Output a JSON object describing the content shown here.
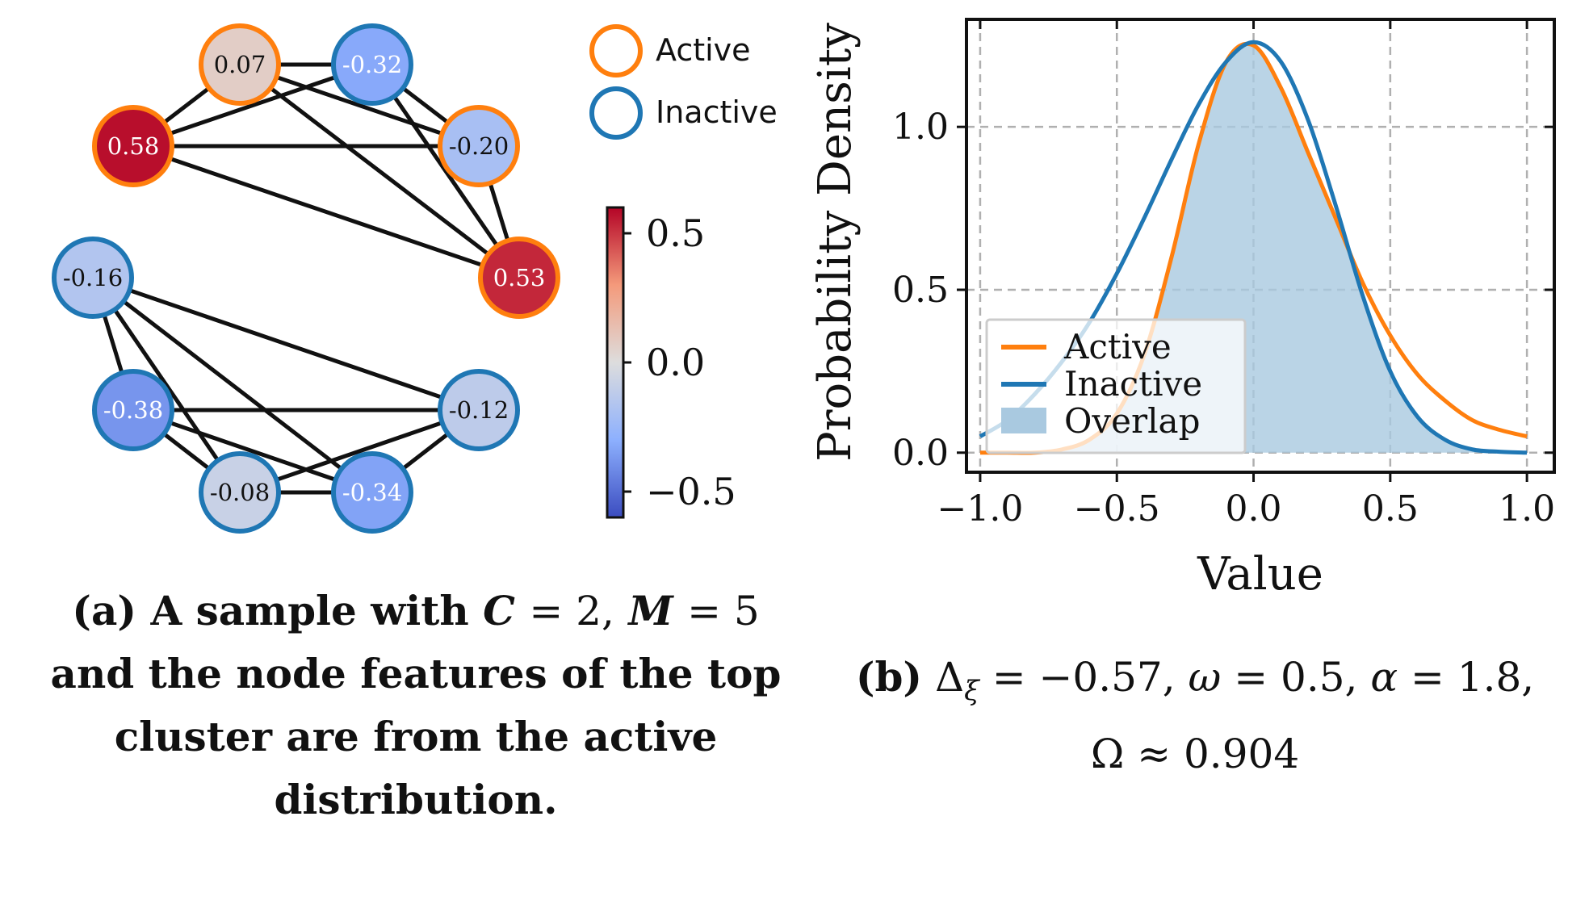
{
  "graph": {
    "nodes": [
      {
        "id": "n1",
        "label": "0.07",
        "value": 0.07,
        "status": "active"
      },
      {
        "id": "n2",
        "label": "-0.32",
        "value": -0.32,
        "status": "inactive"
      },
      {
        "id": "n3",
        "label": "0.58",
        "value": 0.58,
        "status": "active"
      },
      {
        "id": "n4",
        "label": "-0.20",
        "value": -0.2,
        "status": "active"
      },
      {
        "id": "n5",
        "label": "0.53",
        "value": 0.53,
        "status": "active"
      },
      {
        "id": "n6",
        "label": "-0.16",
        "value": -0.16,
        "status": "inactive"
      },
      {
        "id": "n7",
        "label": "-0.38",
        "value": -0.38,
        "status": "inactive"
      },
      {
        "id": "n8",
        "label": "-0.12",
        "value": -0.12,
        "status": "inactive"
      },
      {
        "id": "n9",
        "label": "-0.08",
        "value": -0.08,
        "status": "inactive"
      },
      {
        "id": "n10",
        "label": "-0.34",
        "value": -0.34,
        "status": "inactive"
      }
    ],
    "edges": [
      [
        "n1",
        "n2"
      ],
      [
        "n1",
        "n3"
      ],
      [
        "n1",
        "n4"
      ],
      [
        "n1",
        "n5"
      ],
      [
        "n2",
        "n3"
      ],
      [
        "n2",
        "n4"
      ],
      [
        "n2",
        "n5"
      ],
      [
        "n3",
        "n4"
      ],
      [
        "n3",
        "n5"
      ],
      [
        "n4",
        "n5"
      ],
      [
        "n6",
        "n7"
      ],
      [
        "n6",
        "n8"
      ],
      [
        "n6",
        "n9"
      ],
      [
        "n6",
        "n10"
      ],
      [
        "n7",
        "n8"
      ],
      [
        "n7",
        "n9"
      ],
      [
        "n7",
        "n10"
      ],
      [
        "n8",
        "n9"
      ],
      [
        "n8",
        "n10"
      ],
      [
        "n9",
        "n10"
      ]
    ],
    "legend": [
      {
        "label": "Active",
        "color": "#ff7f0e"
      },
      {
        "label": "Inactive",
        "color": "#1f77b4"
      }
    ]
  },
  "colorbar": {
    "ticks": [
      {
        "value": 0.5,
        "label": "0.5"
      },
      {
        "value": 0.0,
        "label": "0.0"
      },
      {
        "value": -0.5,
        "label": "−0.5"
      }
    ],
    "range": [
      -0.6,
      0.6
    ]
  },
  "chart_data": {
    "type": "line",
    "title": "",
    "xlabel": "Value",
    "ylabel": "Probability Density",
    "xlim": [
      -1.05,
      1.1
    ],
    "ylim": [
      -0.06,
      1.33
    ],
    "xticks": [
      {
        "value": -1.0,
        "label": "−1.0"
      },
      {
        "value": -0.5,
        "label": "−0.5"
      },
      {
        "value": 0.0,
        "label": "0.0"
      },
      {
        "value": 0.5,
        "label": "0.5"
      },
      {
        "value": 1.0,
        "label": "1.0"
      }
    ],
    "yticks": [
      {
        "value": 0.0,
        "label": "0.0"
      },
      {
        "value": 0.5,
        "label": "0.5"
      },
      {
        "value": 1.0,
        "label": "1.0"
      }
    ],
    "grid": true,
    "legend_position": "lower-left",
    "x": [
      -1.0,
      -0.9,
      -0.8,
      -0.7,
      -0.6,
      -0.5,
      -0.4,
      -0.3,
      -0.2,
      -0.1,
      0.0,
      0.1,
      0.2,
      0.3,
      0.4,
      0.5,
      0.6,
      0.7,
      0.8,
      0.9,
      1.0
    ],
    "series": [
      {
        "name": "Active",
        "color": "#ff7f0e",
        "values": [
          0.0,
          0.0,
          0.0,
          0.01,
          0.04,
          0.12,
          0.3,
          0.6,
          0.95,
          1.2,
          1.25,
          1.12,
          0.92,
          0.72,
          0.52,
          0.36,
          0.24,
          0.16,
          0.1,
          0.07,
          0.05
        ]
      },
      {
        "name": "Inactive",
        "color": "#1f77b4",
        "values": [
          0.05,
          0.1,
          0.18,
          0.28,
          0.4,
          0.55,
          0.72,
          0.9,
          1.07,
          1.2,
          1.26,
          1.2,
          1.02,
          0.76,
          0.48,
          0.25,
          0.11,
          0.04,
          0.01,
          0.003,
          0.0
        ]
      }
    ],
    "overlap_label": "Overlap",
    "overlap_color": "#a9c9e0"
  },
  "captions": {
    "a_label": "(a)",
    "a_text_1": "A sample with",
    "a_C": "C",
    "a_eq1": "= 2,",
    "a_M": "M",
    "a_eq2": "= 5",
    "a_text_2": "and the node features of the top",
    "a_text_3": "cluster are from the active",
    "a_text_4": "distribution.",
    "b_label": "(b)",
    "b_text_1": "Δ",
    "b_sub": "ξ",
    "b_text_2": " = −0.57, ",
    "b_omega": "ω",
    "b_text_3": " = 0.5, ",
    "b_alpha": "α",
    "b_text_4": " = 1.8,",
    "b_text_5": "Ω ≈ 0.904"
  }
}
